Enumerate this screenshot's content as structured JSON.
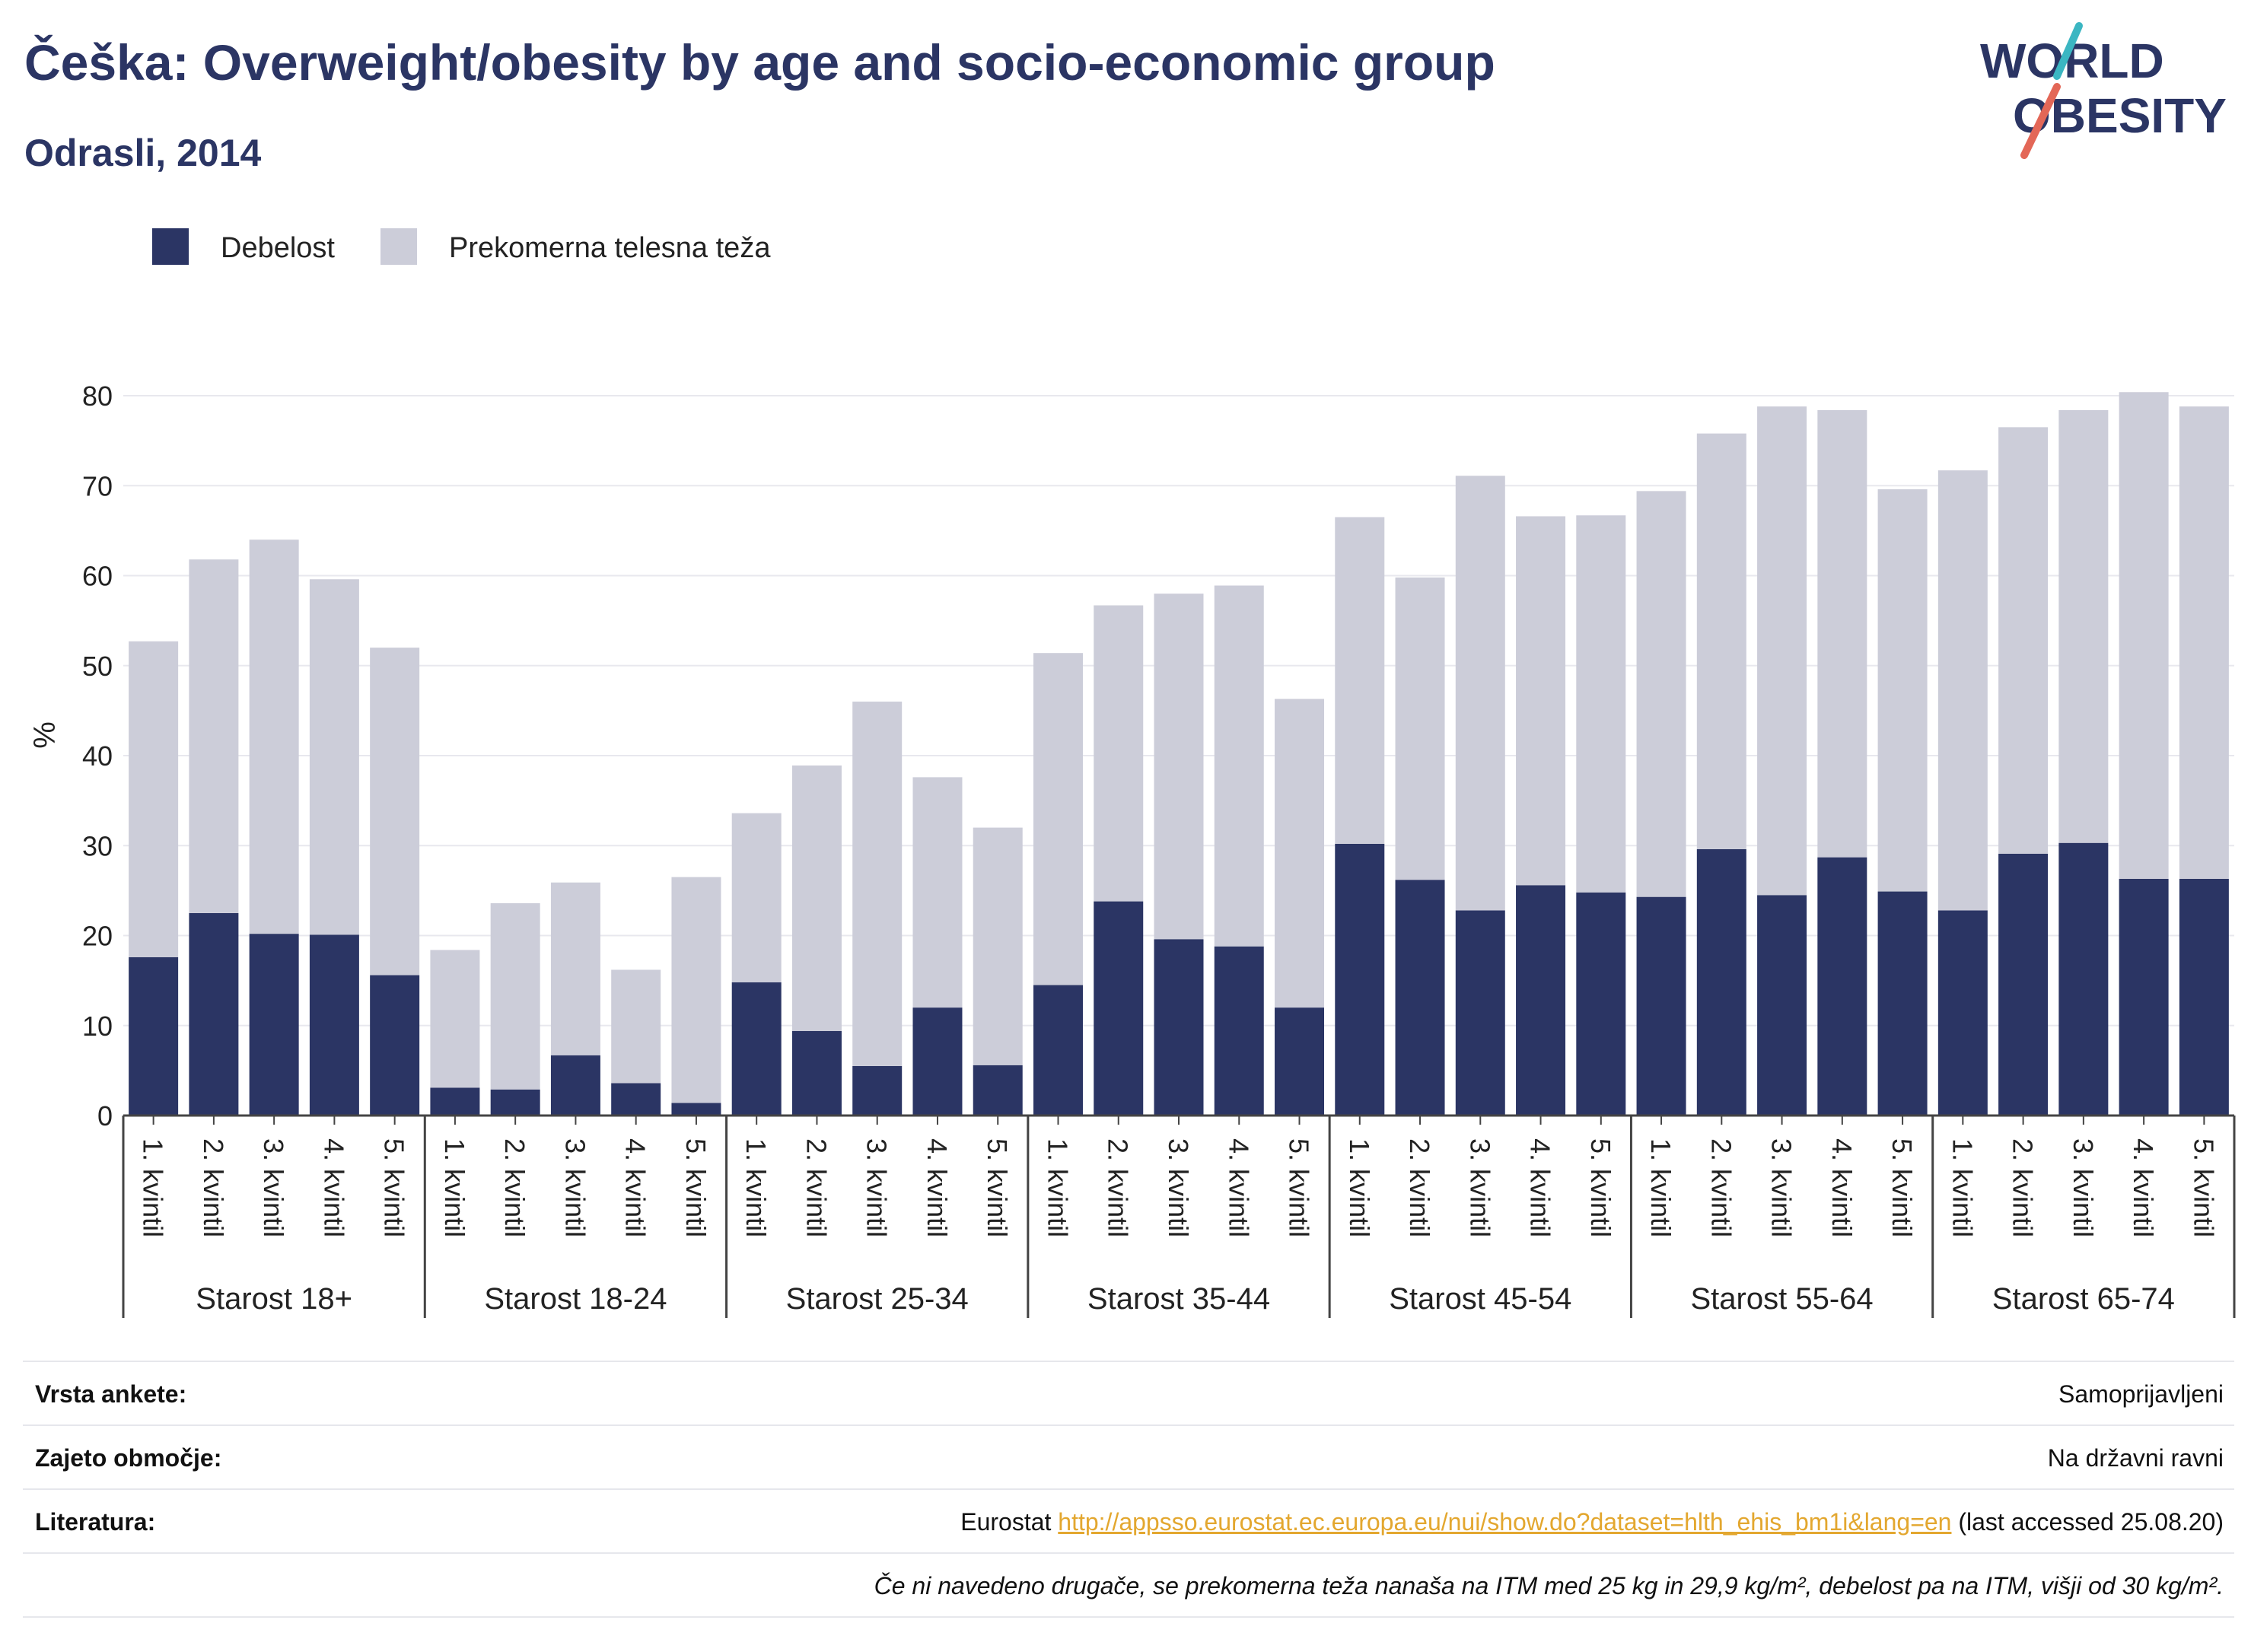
{
  "header": {
    "title": "Češka: Overweight/obesity by age and socio-economic group",
    "subtitle": "Odrasli, 2014",
    "logo_line1": "WORLD",
    "logo_line2": "OBESITY"
  },
  "colors": {
    "obesity": "#2b3564",
    "overweight": "#cccdd9",
    "text_dark": "#2b3564",
    "link": "#e3a72f",
    "logo_teal": "#3bb6c2",
    "logo_red": "#e36757"
  },
  "chart_data": {
    "type": "bar",
    "stacked": true,
    "ylabel": "%",
    "ylim": [
      0,
      80
    ],
    "yticks": [
      0,
      10,
      20,
      30,
      40,
      50,
      60,
      70,
      80
    ],
    "grid": true,
    "legend_position": "top-left",
    "groups": [
      {
        "label": "Starost 18+",
        "categories": [
          "1. kvintil",
          "2. kvintil",
          "3. kvintil",
          "4. kvintil",
          "5. kvintil"
        ]
      },
      {
        "label": "Starost 18-24",
        "categories": [
          "1. kvintil",
          "2. kvintil",
          "3. kvintil",
          "4. kvintil",
          "5. kvintil"
        ]
      },
      {
        "label": "Starost 25-34",
        "categories": [
          "1. kvintil",
          "2. kvintil",
          "3. kvintil",
          "4. kvintil",
          "5. kvintil"
        ]
      },
      {
        "label": "Starost 35-44",
        "categories": [
          "1. kvintil",
          "2. kvintil",
          "3. kvintil",
          "4. kvintil",
          "5. kvintil"
        ]
      },
      {
        "label": "Starost 45-54",
        "categories": [
          "1. kvintil",
          "2. kvintil",
          "3. kvintil",
          "4. kvintil",
          "5. kvintil"
        ]
      },
      {
        "label": "Starost 55-64",
        "categories": [
          "1. kvintil",
          "2. kvintil",
          "3. kvintil",
          "4. kvintil",
          "5. kvintil"
        ]
      },
      {
        "label": "Starost 65-74",
        "categories": [
          "1. kvintil",
          "2. kvintil",
          "3. kvintil",
          "4. kvintil",
          "5. kvintil"
        ]
      }
    ],
    "series": [
      {
        "name": "Debelost",
        "values": [
          17.6,
          22.5,
          20.2,
          20.1,
          15.6,
          3.1,
          2.9,
          6.7,
          3.6,
          1.4,
          14.8,
          9.4,
          5.5,
          12.0,
          5.6,
          14.5,
          23.8,
          19.6,
          18.8,
          12.0,
          30.2,
          26.2,
          22.8,
          25.6,
          24.8,
          24.3,
          29.6,
          24.5,
          28.7,
          24.9,
          22.8,
          29.1,
          30.3,
          26.3,
          26.3
        ]
      },
      {
        "name": "Prekomerna telesna teža",
        "values": [
          35.1,
          39.3,
          43.8,
          39.5,
          36.4,
          15.3,
          20.7,
          19.2,
          12.6,
          25.1,
          18.8,
          29.5,
          40.5,
          25.6,
          26.4,
          36.9,
          32.9,
          38.4,
          40.1,
          34.3,
          36.3,
          33.6,
          48.3,
          41.0,
          41.9,
          45.1,
          46.2,
          54.3,
          49.7,
          44.7,
          48.9,
          47.4,
          48.1,
          54.1,
          52.5
        ]
      }
    ]
  },
  "footer": {
    "rows": [
      {
        "label": "Vrsta ankete:",
        "value": "Samoprijavljeni"
      },
      {
        "label": "Zajeto območje:",
        "value": "Na državni ravni"
      }
    ],
    "literature_label": "Literatura:",
    "literature_prefix": "Eurostat ",
    "literature_link": "http://appsso.eurostat.ec.europa.eu/nui/show.do?dataset=hlth_ehis_bm1i&lang=en",
    "literature_suffix": " (last accessed 25.08.20)",
    "note": "Če ni navedeno drugače, se prekomerna teža nanaša na ITM med 25 kg in 29,9 kg/m², debelost pa na ITM, višji od 30 kg/m²."
  }
}
